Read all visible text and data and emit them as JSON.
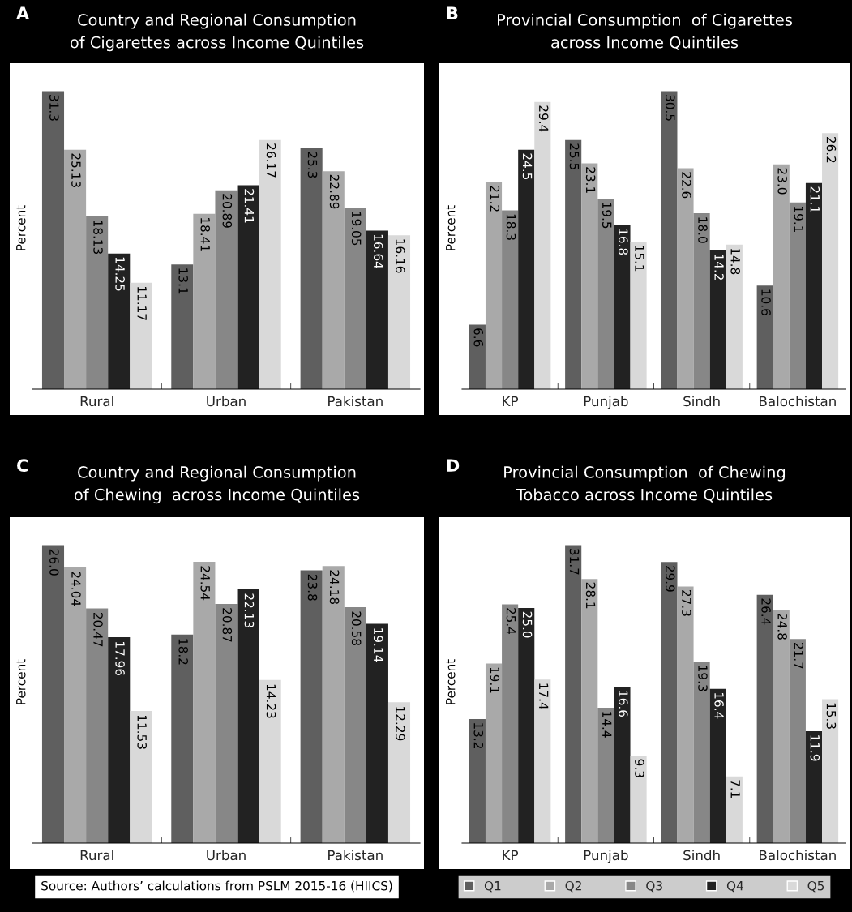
{
  "chart_data": [
    {
      "type": "bar",
      "title": "Country and Regional Consumption\nof Cigarettes across Income Quintiles",
      "ylabel": "Percent",
      "annotations": [
        "A"
      ],
      "categories": [
        "Rural",
        "Urban",
        "Pakistan"
      ],
      "series": [
        {
          "color": "#5f5f5f",
          "values": [
            31.3,
            13.1,
            25.3
          ],
          "value_labels": [
            "31.3",
            "13.1",
            "25.3"
          ]
        },
        {
          "color": "#a9a9a9",
          "values": [
            25.13,
            18.41,
            22.89
          ],
          "value_labels": [
            "25.13",
            "18.41",
            "22.89"
          ]
        },
        {
          "color": "#878787",
          "values": [
            18.13,
            20.89,
            19.05
          ],
          "value_labels": [
            "18.13",
            "20.89",
            "19.05"
          ]
        },
        {
          "color": "#222222",
          "values": [
            14.25,
            21.41,
            16.64
          ],
          "value_labels": [
            "14.25",
            "21.41",
            "16.64"
          ]
        },
        {
          "color": "#d9d9d9",
          "values": [
            11.17,
            26.17,
            16.16
          ],
          "value_labels": [
            "11.17",
            "26.17",
            "16.16"
          ]
        }
      ]
    },
    {
      "type": "bar",
      "title": "Provincial Consumption  of Cigarettes\nacross Income Quintiles",
      "ylabel": "Percent",
      "annotations": [
        "B"
      ],
      "categories": [
        "KP",
        "Punjab",
        "Sindh",
        "Balochistan"
      ],
      "series": [
        {
          "color": "#5f5f5f",
          "values": [
            6.6,
            25.5,
            30.5,
            10.6
          ],
          "value_labels": [
            "6.6",
            "25.5",
            "30.5",
            "10.6"
          ]
        },
        {
          "color": "#a9a9a9",
          "values": [
            21.2,
            23.1,
            22.6,
            23.0
          ],
          "value_labels": [
            "21.2",
            "23.1",
            "22.6",
            "23.0"
          ]
        },
        {
          "color": "#878787",
          "values": [
            18.3,
            19.5,
            18.0,
            19.1
          ],
          "value_labels": [
            "18.3",
            "19.5",
            "18.0",
            "19.1"
          ]
        },
        {
          "color": "#222222",
          "values": [
            24.5,
            16.8,
            14.2,
            21.1
          ],
          "value_labels": [
            "24.5",
            "16.8",
            "14.2",
            "21.1"
          ]
        },
        {
          "color": "#d9d9d9",
          "values": [
            29.4,
            15.1,
            14.8,
            26.2
          ],
          "value_labels": [
            "29.4",
            "15.1",
            "14.8",
            "26.2"
          ]
        }
      ]
    },
    {
      "type": "bar",
      "title": "Country and Regional Consumption\nof Chewing  across Income Quintiles",
      "ylabel": "Percent",
      "annotations": [
        "C",
        "Source: Authors’ calculations from PSLM 2015-16 (HIICS)"
      ],
      "categories": [
        "Rural",
        "Urban",
        "Pakistan"
      ],
      "series": [
        {
          "color": "#5f5f5f",
          "values": [
            26.0,
            18.2,
            23.8
          ],
          "value_labels": [
            "26.0",
            "18.2",
            "23.8"
          ]
        },
        {
          "color": "#a9a9a9",
          "values": [
            24.04,
            24.54,
            24.18
          ],
          "value_labels": [
            "24.04",
            "24.54",
            "24.18"
          ]
        },
        {
          "color": "#878787",
          "values": [
            20.47,
            20.87,
            20.58
          ],
          "value_labels": [
            "20.47",
            "20.87",
            "20.58"
          ]
        },
        {
          "color": "#222222",
          "values": [
            17.96,
            22.13,
            19.14
          ],
          "value_labels": [
            "17.96",
            "22.13",
            "19.14"
          ]
        },
        {
          "color": "#d9d9d9",
          "values": [
            11.53,
            14.23,
            12.29
          ],
          "value_labels": [
            "11.53",
            "14.23",
            "12.29"
          ]
        }
      ]
    },
    {
      "type": "bar",
      "title": "Provincial Consumption  of Chewing\nTobacco across Income Quintiles",
      "ylabel": "Percent",
      "annotations": [
        "D"
      ],
      "categories": [
        "KP",
        "Punjab",
        "Sindh",
        "Balochistan"
      ],
      "legend": "bottom",
      "series": [
        {
          "name": "Q1",
          "color": "#5f5f5f",
          "values": [
            13.2,
            31.7,
            29.9,
            26.4
          ],
          "value_labels": [
            "13.2",
            "31.7",
            "29.9",
            "26.4"
          ]
        },
        {
          "name": "Q2",
          "color": "#a9a9a9",
          "values": [
            19.1,
            28.1,
            27.3,
            24.8
          ],
          "value_labels": [
            "19.1",
            "28.1",
            "27.3",
            "24.8"
          ]
        },
        {
          "name": "Q3",
          "color": "#878787",
          "values": [
            25.4,
            14.4,
            19.3,
            21.7
          ],
          "value_labels": [
            "25.4",
            "14.4",
            "19.3",
            "21.7"
          ]
        },
        {
          "name": "Q4",
          "color": "#222222",
          "values": [
            25.0,
            16.6,
            16.4,
            11.9
          ],
          "value_labels": [
            "25.0",
            "16.6",
            "16.4",
            "11.9"
          ]
        },
        {
          "name": "Q5",
          "color": "#d9d9d9",
          "values": [
            17.4,
            9.3,
            7.1,
            15.3
          ],
          "value_labels": [
            "17.4",
            "9.3",
            "7.1",
            "15.3"
          ]
        }
      ]
    }
  ]
}
